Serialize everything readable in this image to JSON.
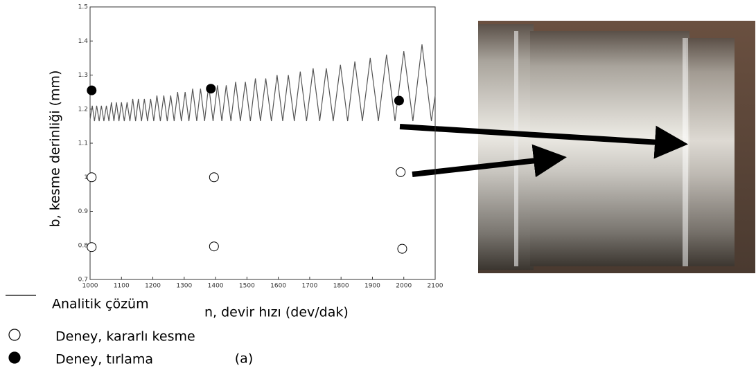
{
  "chart_data": {
    "type": "line",
    "xlabel": "n, devir hızı (dev/dak)",
    "ylabel": "b, kesme derinliği (mm)",
    "annotation": "(a)",
    "xlim": [
      1000,
      2100
    ],
    "ylim": [
      0.7,
      1.5
    ],
    "xticks": [
      1000,
      1100,
      1200,
      1300,
      1400,
      1500,
      1600,
      1700,
      1800,
      1900,
      2000,
      2100
    ],
    "yticks": [
      0.7,
      0.8,
      0.9,
      1,
      1.1,
      1.2,
      1.3,
      1.4,
      1.5
    ],
    "series": [
      {
        "name": "Analitik çözüm",
        "type": "line",
        "color": "#555555",
        "x": [
          1000,
          1007,
          1014,
          1021,
          1029,
          1036,
          1044,
          1052,
          1060,
          1068,
          1076,
          1084,
          1092,
          1100,
          1109,
          1118,
          1127,
          1136,
          1145,
          1154,
          1164,
          1173,
          1183,
          1193,
          1203,
          1213,
          1224,
          1235,
          1246,
          1257,
          1268,
          1279,
          1291,
          1303,
          1315,
          1327,
          1340,
          1352,
          1365,
          1378,
          1392,
          1406,
          1420,
          1434,
          1449,
          1464,
          1479,
          1495,
          1511,
          1527,
          1543,
          1560,
          1578,
          1596,
          1614,
          1632,
          1651,
          1670,
          1690,
          1711,
          1732,
          1753,
          1775,
          1798,
          1821,
          1844,
          1868,
          1893,
          1919,
          1945,
          1972,
          2000,
          2029,
          2058,
          2088,
          2100
        ],
        "values": [
          1.17,
          1.21,
          1.165,
          1.21,
          1.165,
          1.21,
          1.165,
          1.21,
          1.165,
          1.22,
          1.165,
          1.22,
          1.165,
          1.22,
          1.165,
          1.22,
          1.165,
          1.23,
          1.165,
          1.23,
          1.165,
          1.23,
          1.165,
          1.23,
          1.165,
          1.24,
          1.165,
          1.24,
          1.165,
          1.24,
          1.165,
          1.25,
          1.165,
          1.25,
          1.165,
          1.26,
          1.165,
          1.26,
          1.165,
          1.27,
          1.165,
          1.27,
          1.165,
          1.27,
          1.165,
          1.28,
          1.165,
          1.28,
          1.165,
          1.29,
          1.165,
          1.29,
          1.165,
          1.3,
          1.165,
          1.3,
          1.165,
          1.31,
          1.165,
          1.32,
          1.165,
          1.32,
          1.165,
          1.33,
          1.165,
          1.34,
          1.165,
          1.35,
          1.165,
          1.36,
          1.165,
          1.37,
          1.165,
          1.39,
          1.165,
          1.24
        ]
      },
      {
        "name": "Deney, kararlı kesme",
        "type": "scatter",
        "color": "#ffffff",
        "x": [
          1005,
          1005,
          1395,
          1395,
          1990,
          1995
        ],
        "values": [
          1.0,
          0.795,
          1.0,
          0.797,
          1.015,
          0.79
        ]
      },
      {
        "name": "Deney, tırlama",
        "type": "scatter",
        "color": "#000000",
        "x": [
          1005,
          1385,
          1985
        ],
        "values": [
          1.255,
          1.26,
          1.225
        ]
      }
    ]
  }
}
